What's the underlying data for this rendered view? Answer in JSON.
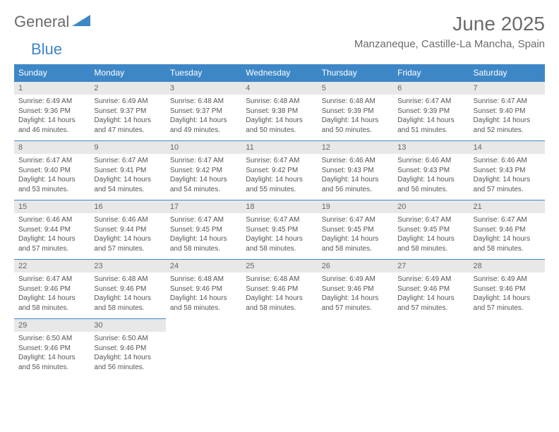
{
  "logo": {
    "part1": "General",
    "part2": "Blue"
  },
  "title": "June 2025",
  "location": "Manzaneque, Castille-La Mancha, Spain",
  "colors": {
    "header_bg": "#3d87c7",
    "header_text": "#ffffff",
    "daynum_bg": "#e8e8e8",
    "body_text": "#555555",
    "title_text": "#6b6b6b",
    "row_border": "#3d87c7"
  },
  "daysOfWeek": [
    "Sunday",
    "Monday",
    "Tuesday",
    "Wednesday",
    "Thursday",
    "Friday",
    "Saturday"
  ],
  "weeks": [
    [
      {
        "n": "1",
        "sr": "6:49 AM",
        "ss": "9:36 PM",
        "dl": "14 hours and 46 minutes."
      },
      {
        "n": "2",
        "sr": "6:49 AM",
        "ss": "9:37 PM",
        "dl": "14 hours and 47 minutes."
      },
      {
        "n": "3",
        "sr": "6:48 AM",
        "ss": "9:37 PM",
        "dl": "14 hours and 49 minutes."
      },
      {
        "n": "4",
        "sr": "6:48 AM",
        "ss": "9:38 PM",
        "dl": "14 hours and 50 minutes."
      },
      {
        "n": "5",
        "sr": "6:48 AM",
        "ss": "9:39 PM",
        "dl": "14 hours and 50 minutes."
      },
      {
        "n": "6",
        "sr": "6:47 AM",
        "ss": "9:39 PM",
        "dl": "14 hours and 51 minutes."
      },
      {
        "n": "7",
        "sr": "6:47 AM",
        "ss": "9:40 PM",
        "dl": "14 hours and 52 minutes."
      }
    ],
    [
      {
        "n": "8",
        "sr": "6:47 AM",
        "ss": "9:40 PM",
        "dl": "14 hours and 53 minutes."
      },
      {
        "n": "9",
        "sr": "6:47 AM",
        "ss": "9:41 PM",
        "dl": "14 hours and 54 minutes."
      },
      {
        "n": "10",
        "sr": "6:47 AM",
        "ss": "9:42 PM",
        "dl": "14 hours and 54 minutes."
      },
      {
        "n": "11",
        "sr": "6:47 AM",
        "ss": "9:42 PM",
        "dl": "14 hours and 55 minutes."
      },
      {
        "n": "12",
        "sr": "6:46 AM",
        "ss": "9:43 PM",
        "dl": "14 hours and 56 minutes."
      },
      {
        "n": "13",
        "sr": "6:46 AM",
        "ss": "9:43 PM",
        "dl": "14 hours and 56 minutes."
      },
      {
        "n": "14",
        "sr": "6:46 AM",
        "ss": "9:43 PM",
        "dl": "14 hours and 57 minutes."
      }
    ],
    [
      {
        "n": "15",
        "sr": "6:46 AM",
        "ss": "9:44 PM",
        "dl": "14 hours and 57 minutes."
      },
      {
        "n": "16",
        "sr": "6:46 AM",
        "ss": "9:44 PM",
        "dl": "14 hours and 57 minutes."
      },
      {
        "n": "17",
        "sr": "6:47 AM",
        "ss": "9:45 PM",
        "dl": "14 hours and 58 minutes."
      },
      {
        "n": "18",
        "sr": "6:47 AM",
        "ss": "9:45 PM",
        "dl": "14 hours and 58 minutes."
      },
      {
        "n": "19",
        "sr": "6:47 AM",
        "ss": "9:45 PM",
        "dl": "14 hours and 58 minutes."
      },
      {
        "n": "20",
        "sr": "6:47 AM",
        "ss": "9:45 PM",
        "dl": "14 hours and 58 minutes."
      },
      {
        "n": "21",
        "sr": "6:47 AM",
        "ss": "9:46 PM",
        "dl": "14 hours and 58 minutes."
      }
    ],
    [
      {
        "n": "22",
        "sr": "6:47 AM",
        "ss": "9:46 PM",
        "dl": "14 hours and 58 minutes."
      },
      {
        "n": "23",
        "sr": "6:48 AM",
        "ss": "9:46 PM",
        "dl": "14 hours and 58 minutes."
      },
      {
        "n": "24",
        "sr": "6:48 AM",
        "ss": "9:46 PM",
        "dl": "14 hours and 58 minutes."
      },
      {
        "n": "25",
        "sr": "6:48 AM",
        "ss": "9:46 PM",
        "dl": "14 hours and 58 minutes."
      },
      {
        "n": "26",
        "sr": "6:49 AM",
        "ss": "9:46 PM",
        "dl": "14 hours and 57 minutes."
      },
      {
        "n": "27",
        "sr": "6:49 AM",
        "ss": "9:46 PM",
        "dl": "14 hours and 57 minutes."
      },
      {
        "n": "28",
        "sr": "6:49 AM",
        "ss": "9:46 PM",
        "dl": "14 hours and 57 minutes."
      }
    ],
    [
      {
        "n": "29",
        "sr": "6:50 AM",
        "ss": "9:46 PM",
        "dl": "14 hours and 56 minutes."
      },
      {
        "n": "30",
        "sr": "6:50 AM",
        "ss": "9:46 PM",
        "dl": "14 hours and 56 minutes."
      },
      null,
      null,
      null,
      null,
      null
    ]
  ],
  "labels": {
    "sunrise": "Sunrise:",
    "sunset": "Sunset:",
    "daylight": "Daylight:"
  }
}
